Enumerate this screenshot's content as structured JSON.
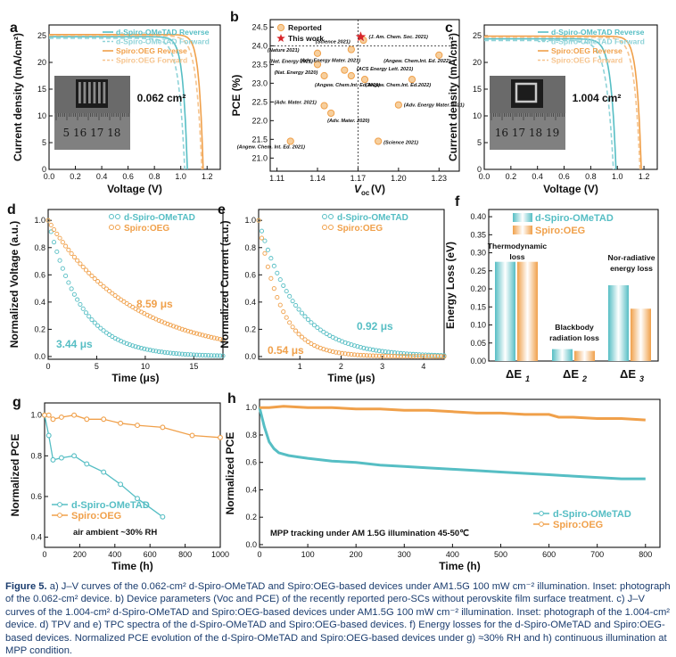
{
  "figure": {
    "panels": {
      "a": {
        "letter": "a",
        "legend": [
          "d-Spiro-OMeTAD Reverse",
          "d-Spiro-OMeTAD Forward",
          "Spiro:OEG Reverse",
          "Spiro:OEG Forward"
        ],
        "area_label": "0.062 cm²",
        "inset_ruler": "5 16 17 18",
        "xlabel": "Voltage (V)",
        "ylabel": "Current density (mA/cm²)"
      },
      "b": {
        "letter": "b",
        "legend": [
          "Reported",
          "This work"
        ],
        "xlabel": "V",
        "xlabel_sub": "oc",
        "xlabel_unit": "(V)",
        "ylabel": "PCE (%)"
      },
      "c": {
        "letter": "c",
        "legend": [
          "d-Spiro-OMeTAD Reverse",
          "d-Spiro-OMeTAD Forward",
          "Spiro:OEG Reverse",
          "Spiro:OEG Forward"
        ],
        "area_label": "1.004 cm²",
        "inset_ruler": "16 17 18 19",
        "xlabel": "Voltage (V)",
        "ylabel": "Current density (mA/cm²)"
      },
      "d": {
        "letter": "d",
        "legend": [
          "d-Spiro-OMeTAD",
          "Spiro:OEG"
        ],
        "tau_orange": "8.59 μs",
        "tau_teal": "3.44 μs",
        "xlabel": "Time (μs)",
        "ylabel": "Normalized Voltage (a.u.)"
      },
      "e": {
        "letter": "e",
        "legend": [
          "d-Spiro-OMeTAD",
          "Spiro:OEG"
        ],
        "tau_teal": "0.92 μs",
        "tau_orange": "0.54 μs",
        "xlabel": "Time (μs)",
        "ylabel": "Normalized Current (a.u.)"
      },
      "f": {
        "letter": "f",
        "legend": [
          "d-Spiro-OMeTAD",
          "Spiro:OEG"
        ],
        "ylabel": "Energy Loss (eV)",
        "groups": [
          {
            "label_lines": [
              "Thermodynamic",
              "loss"
            ],
            "sym": "ΔE",
            "sub": "1"
          },
          {
            "label_lines": [
              "Blackbody",
              "radiation loss"
            ],
            "sym": "ΔE",
            "sub": "2"
          },
          {
            "label_lines": [
              "Nor-radiative",
              "energy loss"
            ],
            "sym": "ΔE",
            "sub": "3"
          }
        ]
      },
      "g": {
        "letter": "g",
        "legend": [
          "d-Spiro-OMeTAD",
          "Spiro:OEG"
        ],
        "note": "air ambient ~30% RH",
        "xlabel": "Time (h)",
        "ylabel": "Normalized PCE"
      },
      "h": {
        "letter": "h",
        "legend": [
          "d-Spiro-OMeTAD",
          "Spiro:OEG"
        ],
        "note": "MPP tracking  under AM 1.5G illumination 45-50℃",
        "xlabel": "Time (h)",
        "ylabel": "Normalized PCE"
      }
    },
    "colors": {
      "teal": "#56bec4",
      "teal_dash": "#8fd3d8",
      "orange": "#f0a04a",
      "orange_dash": "#f6c48e",
      "red_star": "#d7262b",
      "caption": "#1a3c6e"
    }
  },
  "chart_data": [
    {
      "panel": "a",
      "type": "line",
      "xlim": [
        0.0,
        1.3
      ],
      "ylim": [
        0,
        27
      ],
      "x_ticks": [
        "0.0",
        "0.2",
        "0.4",
        "0.6",
        "0.8",
        "1.0",
        "1.2"
      ],
      "y_ticks": [
        "0",
        "5",
        "10",
        "15",
        "20",
        "25"
      ],
      "series": [
        {
          "name": "d-Spiro-OMeTAD Reverse",
          "jsc": 24.8,
          "voc": 1.05,
          "sharp": 30
        },
        {
          "name": "d-Spiro-OMeTAD Forward",
          "jsc": 24.5,
          "voc": 1.03,
          "sharp": 22
        },
        {
          "name": "Spiro:OEG Reverse",
          "jsc": 25.2,
          "voc": 1.17,
          "sharp": 32
        },
        {
          "name": "Spiro:OEG Forward",
          "jsc": 25.0,
          "voc": 1.16,
          "sharp": 24
        }
      ]
    },
    {
      "panel": "b",
      "type": "scatter",
      "xlim": [
        1.105,
        1.245
      ],
      "ylim": [
        20.65,
        24.7
      ],
      "x_ticks": [
        "1.11",
        "1.14",
        "1.17",
        "1.20",
        "1.23"
      ],
      "y_ticks": [
        "21.0",
        "21.5",
        "22.0",
        "22.5",
        "23.0",
        "23.5",
        "24.0",
        "24.5"
      ],
      "this_work": {
        "x": 1.172,
        "y": 24.24
      },
      "points": [
        {
          "x": 1.174,
          "y": 24.15,
          "label": "(J. Am. Chem. Soc. 2021)"
        },
        {
          "x": 1.165,
          "y": 23.9,
          "label": "(Science 2021)"
        },
        {
          "x": 1.23,
          "y": 23.75,
          "label": "(Angew. Chem.Int. Ed. 2022)"
        },
        {
          "x": 1.14,
          "y": 23.8,
          "label": "(Nature 2021)"
        },
        {
          "x": 1.14,
          "y": 23.5,
          "label": "(Nat. Energy 2021)"
        },
        {
          "x": 1.16,
          "y": 23.35,
          "label": "(Adv. Energy Mater. 2021)"
        },
        {
          "x": 1.145,
          "y": 23.2,
          "label": "(Nat. Energy 2020)"
        },
        {
          "x": 1.165,
          "y": 23.2,
          "label": "(ACS Energy Lett. 2021)"
        },
        {
          "x": 1.175,
          "y": 23.1,
          "label": "(Angew. Chem.Int. Ed.2021)"
        },
        {
          "x": 1.21,
          "y": 23.1,
          "label": "(Angew. Chem.Int. Ed.2022)"
        },
        {
          "x": 1.145,
          "y": 22.4,
          "label": "(Adv. Mater. 2021)"
        },
        {
          "x": 1.2,
          "y": 22.42,
          "label": "(Adv. Energy Mater. 2021)"
        },
        {
          "x": 1.15,
          "y": 22.2,
          "label": "(Adv. Mater. 2020)"
        },
        {
          "x": 1.12,
          "y": 21.45,
          "label": "(Angew. Chem. Int. Ed. 2021)"
        },
        {
          "x": 1.185,
          "y": 21.45,
          "label": "(Science 2021)"
        }
      ]
    },
    {
      "panel": "c",
      "type": "line",
      "xlim": [
        0.0,
        1.3
      ],
      "ylim": [
        0,
        27
      ],
      "x_ticks": [
        "0.0",
        "0.2",
        "0.4",
        "0.6",
        "0.8",
        "1.0",
        "1.2"
      ],
      "y_ticks": [
        "0",
        "5",
        "10",
        "15",
        "20",
        "25"
      ],
      "series": [
        {
          "name": "d-Spiro-OMeTAD Reverse",
          "jsc": 24.4,
          "voc": 0.99,
          "sharp": 26
        },
        {
          "name": "d-Spiro-OMeTAD Forward",
          "jsc": 24.1,
          "voc": 0.97,
          "sharp": 20
        },
        {
          "name": "Spiro:OEG Reverse",
          "jsc": 24.9,
          "voc": 1.18,
          "sharp": 30
        },
        {
          "name": "Spiro:OEG Forward",
          "jsc": 24.7,
          "voc": 1.17,
          "sharp": 24
        }
      ]
    },
    {
      "panel": "d",
      "type": "scatter",
      "xlim": [
        0,
        18
      ],
      "ylim": [
        -0.02,
        1.08
      ],
      "x_ticks": [
        "0",
        "5",
        "10",
        "15"
      ],
      "y_ticks": [
        "0.0",
        "0.2",
        "0.4",
        "0.6",
        "0.8",
        "1.0"
      ],
      "series": [
        {
          "name": "d-Spiro-OMeTAD",
          "tau": 3.44,
          "xmax": 18,
          "step": 0.3
        },
        {
          "name": "Spiro:OEG",
          "tau": 8.59,
          "xmax": 18,
          "step": 0.3
        }
      ]
    },
    {
      "panel": "e",
      "type": "scatter",
      "xlim": [
        0,
        4.5
      ],
      "ylim": [
        -0.02,
        1.08
      ],
      "x_ticks": [
        "1",
        "2",
        "3",
        "4"
      ],
      "y_ticks": [
        "0.0",
        "0.2",
        "0.4",
        "0.6",
        "0.8",
        "1.0"
      ],
      "series": [
        {
          "name": "d-Spiro-OMeTAD",
          "tau": 0.92,
          "xmax": 4.5,
          "step": 0.075
        },
        {
          "name": "Spiro:OEG",
          "tau": 0.54,
          "xmax": 4.5,
          "step": 0.075
        }
      ]
    },
    {
      "panel": "f",
      "type": "bar",
      "categories": [
        "ΔE1",
        "ΔE2",
        "ΔE3"
      ],
      "ylim": [
        0,
        0.42
      ],
      "y_ticks": [
        "0.00",
        "0.05",
        "0.10",
        "0.15",
        "0.20",
        "0.25",
        "0.30",
        "0.35",
        "0.40"
      ],
      "series": [
        {
          "name": "d-Spiro-OMeTAD",
          "values": [
            0.275,
            0.033,
            0.21
          ]
        },
        {
          "name": "Spiro:OEG",
          "values": [
            0.275,
            0.028,
            0.145
          ]
        }
      ]
    },
    {
      "panel": "g",
      "type": "line",
      "xlim": [
        0,
        1000
      ],
      "ylim": [
        0.35,
        1.06
      ],
      "x_ticks": [
        "0",
        "200",
        "400",
        "600",
        "800",
        "1000"
      ],
      "y_ticks": [
        "0.4",
        "0.6",
        "0.8",
        "1.0"
      ],
      "series": [
        {
          "name": "d-Spiro-OMeTAD",
          "x": [
            0,
            24,
            48,
            96,
            168,
            240,
            336,
            432,
            528,
            672
          ],
          "y": [
            1.0,
            0.9,
            0.78,
            0.79,
            0.8,
            0.76,
            0.72,
            0.66,
            0.59,
            0.5
          ]
        },
        {
          "name": "Spiro:OEG",
          "x": [
            0,
            24,
            48,
            96,
            168,
            240,
            336,
            432,
            528,
            672,
            840,
            1000
          ],
          "y": [
            1.0,
            1.0,
            0.98,
            0.99,
            1.0,
            0.98,
            0.98,
            0.96,
            0.95,
            0.94,
            0.9,
            0.89
          ]
        }
      ]
    },
    {
      "panel": "h",
      "type": "line",
      "xlim": [
        0,
        830
      ],
      "ylim": [
        -0.02,
        1.06
      ],
      "x_ticks": [
        "0",
        "100",
        "200",
        "300",
        "400",
        "500",
        "600",
        "700",
        "800"
      ],
      "y_ticks": [
        "0.0",
        "0.2",
        "0.4",
        "0.6",
        "0.8",
        "1.0"
      ],
      "series": [
        {
          "name": "d-Spiro-OMeTAD",
          "x": [
            0,
            10,
            20,
            30,
            40,
            60,
            80,
            100,
            150,
            200,
            250,
            300,
            350,
            400,
            450,
            500,
            550,
            600,
            650,
            700,
            750,
            800
          ],
          "y": [
            1.0,
            0.86,
            0.75,
            0.7,
            0.67,
            0.65,
            0.64,
            0.63,
            0.61,
            0.6,
            0.58,
            0.57,
            0.56,
            0.55,
            0.54,
            0.53,
            0.52,
            0.51,
            0.5,
            0.49,
            0.48,
            0.48
          ]
        },
        {
          "name": "Spiro:OEG",
          "x": [
            0,
            20,
            50,
            100,
            150,
            200,
            250,
            300,
            350,
            400,
            450,
            500,
            550,
            600,
            620,
            650,
            700,
            750,
            800
          ],
          "y": [
            1.0,
            1.0,
            1.01,
            1.0,
            1.0,
            0.99,
            0.99,
            0.98,
            0.98,
            0.97,
            0.96,
            0.96,
            0.95,
            0.95,
            0.93,
            0.93,
            0.92,
            0.92,
            0.91
          ]
        }
      ]
    }
  ],
  "caption": {
    "label": "Figure 5.",
    "text": " a) J–V curves of the 0.062-cm² d-Spiro-OMeTAD and Spiro:OEG-based devices under AM1.5G 100 mW cm⁻² illumination. Inset: photograph of the 0.062-cm² device. b) Device parameters (Voc and PCE) of the recently reported pero-SCs without perovskite film surface treatment. c) J–V curves of the 1.004-cm² d-Spiro-OMeTAD and Spiro:OEG-based devices under AM1.5G 100 mW cm⁻² illumination. Inset: photograph of the 1.004-cm² device. d) TPV and e) TPC spectra of the d-Spiro-OMeTAD and Spiro:OEG-based devices. f) Energy losses for the d-Spiro-OMeTAD and Spiro:OEG-based devices. Normalized PCE evolution of the d-Spiro-OMeTAD and Spiro:OEG-based devices under g) ≈30% RH and h) continuous illumination at MPP condition."
  }
}
